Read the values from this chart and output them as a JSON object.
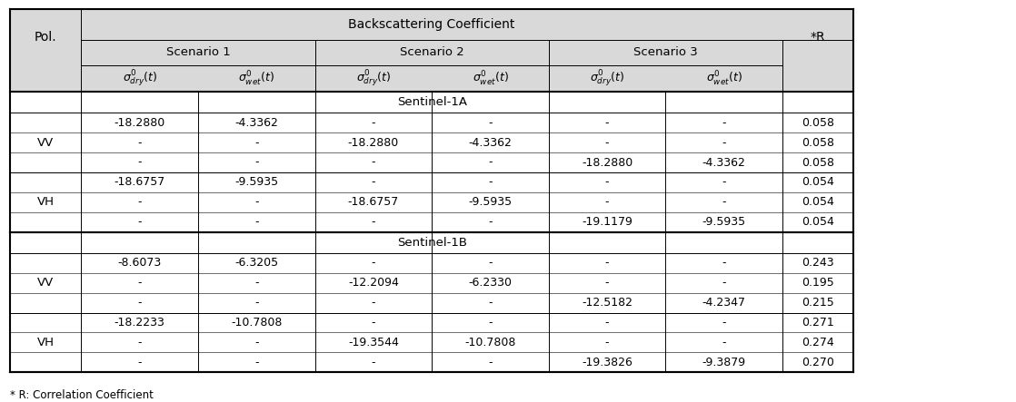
{
  "title_backscatter": "Backscattering Coefficient",
  "col_pol": "Pol.",
  "col_r": "*R",
  "scenarios": [
    "Scenario 1",
    "Scenario 2",
    "Scenario 3"
  ],
  "sub_cols": [
    "σ°_dry(t)",
    "σ°_wet(t)"
  ],
  "sentinel_1a": "Sentinel-1A",
  "sentinel_1b": "Sentinel-1B",
  "footnote": "* R: Correlation Coefficient",
  "header_bg": "#d9d9d9",
  "sentinel_bg": "#ffffff",
  "data_1a": [
    [
      "VV",
      "-18.2880",
      "-4.3362",
      "-",
      "-",
      "-",
      "-",
      "0.058"
    ],
    [
      "VV",
      "-",
      "-",
      "-18.2880",
      "-4.3362",
      "-",
      "-",
      "0.058"
    ],
    [
      "VV",
      "-",
      "-",
      "-",
      "-",
      "-18.2880",
      "-4.3362",
      "0.058"
    ],
    [
      "VH",
      "-18.6757",
      "-9.5935",
      "-",
      "-",
      "-",
      "-",
      "0.054"
    ],
    [
      "VH",
      "-",
      "-",
      "-18.6757",
      "-9.5935",
      "-",
      "-",
      "0.054"
    ],
    [
      "VH",
      "-",
      "-",
      "-",
      "-",
      "-19.1179",
      "-9.5935",
      "0.054"
    ]
  ],
  "data_1b": [
    [
      "VV",
      "-8.6073",
      "-6.3205",
      "-",
      "-",
      "-",
      "-",
      "0.243"
    ],
    [
      "VV",
      "-",
      "-",
      "-12.2094",
      "-6.2330",
      "-",
      "-",
      "0.195"
    ],
    [
      "VV",
      "-",
      "-",
      "-",
      "-",
      "-12.5182",
      "-4.2347",
      "0.215"
    ],
    [
      "VH",
      "-18.2233",
      "-10.7808",
      "-",
      "-",
      "-",
      "-",
      "0.271"
    ],
    [
      "VH",
      "-",
      "-",
      "-19.3544",
      "-10.7808",
      "-",
      "-",
      "0.274"
    ],
    [
      "VH",
      "-",
      "-",
      "-",
      "-",
      "-19.3826",
      "-9.3879",
      "0.270"
    ]
  ]
}
